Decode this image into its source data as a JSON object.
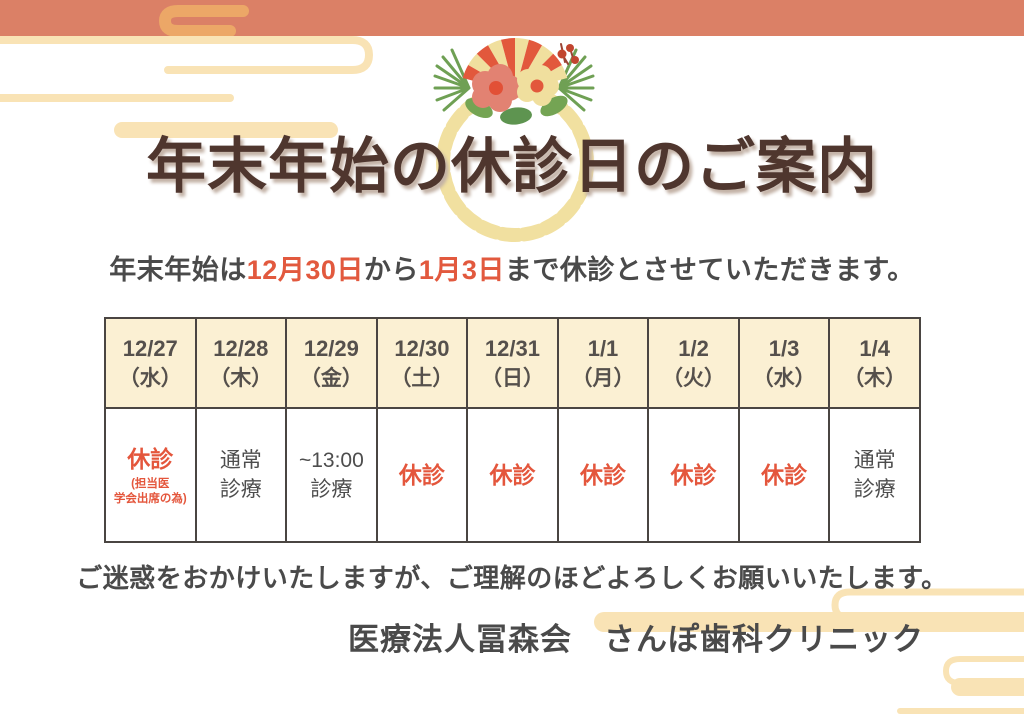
{
  "header": {
    "title": "年末年始の休診日のご案内"
  },
  "subtitle": {
    "prefix": "年末年始は",
    "highlight_start": "12月30日",
    "connector": "から",
    "highlight_end": "1月3日",
    "suffix": "まで休診とさせていただきます。"
  },
  "schedule": {
    "columns": [
      {
        "date": "12/27",
        "day": "（水）",
        "status_line1": "休診",
        "status_line2": "",
        "note_line1": "(担当医",
        "note_line2": "学会出席の為)",
        "type": "closed"
      },
      {
        "date": "12/28",
        "day": "（木）",
        "status_line1": "通常",
        "status_line2": "診療",
        "note_line1": "",
        "note_line2": "",
        "type": "normal"
      },
      {
        "date": "12/29",
        "day": "（金）",
        "status_line1": "~13:00",
        "status_line2": "診療",
        "note_line1": "",
        "note_line2": "",
        "type": "short"
      },
      {
        "date": "12/30",
        "day": "（土）",
        "status_line1": "休診",
        "status_line2": "",
        "note_line1": "",
        "note_line2": "",
        "type": "closed"
      },
      {
        "date": "12/31",
        "day": "（日）",
        "status_line1": "休診",
        "status_line2": "",
        "note_line1": "",
        "note_line2": "",
        "type": "closed"
      },
      {
        "date": "1/1",
        "day": "（月）",
        "status_line1": "休診",
        "status_line2": "",
        "note_line1": "",
        "note_line2": "",
        "type": "closed"
      },
      {
        "date": "1/2",
        "day": "（火）",
        "status_line1": "休診",
        "status_line2": "",
        "note_line1": "",
        "note_line2": "",
        "type": "closed"
      },
      {
        "date": "1/3",
        "day": "（水）",
        "status_line1": "休診",
        "status_line2": "",
        "note_line1": "",
        "note_line2": "",
        "type": "closed"
      },
      {
        "date": "1/4",
        "day": "（木）",
        "status_line1": "通常",
        "status_line2": "診療",
        "note_line1": "",
        "note_line2": "",
        "type": "normal"
      }
    ]
  },
  "footer": {
    "closing_message": "ご迷惑をおかけいたしますが、ご理解のほどよろしくお願いいたします。",
    "clinic_name": "医療法人冨森会　さんぽ歯科クリニック"
  },
  "decorations": {
    "wreath": "shimenawa-new-year-wreath",
    "cloud_pattern": "egasumi-cloud-swirl"
  },
  "colors": {
    "band": "#DB8066",
    "band_swirl": "#ECA767",
    "cream": "#F9E3B5",
    "rope_yellow": "#F1E0A0",
    "table_header_bg": "#FBF0D3",
    "table_border": "#4A4542",
    "accent_red": "#E2593E",
    "text_dark": "#4A4A4A",
    "title_brown": "#4F362E",
    "pine_green": "#6FA054",
    "leaf_green": "#74A453"
  }
}
